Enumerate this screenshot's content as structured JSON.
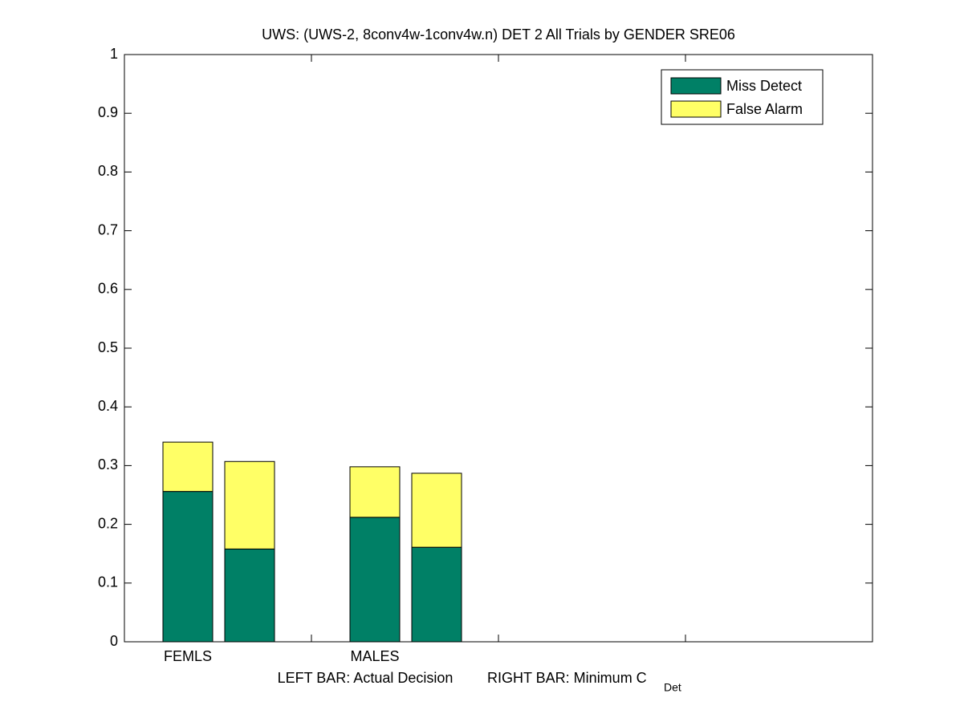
{
  "chart_data": {
    "type": "stacked-bar",
    "title": "UWS: (UWS-2, 8conv4w-1conv4w.n) DET 2 All Trials by GENDER SRE06",
    "categories": [
      "FEMLS",
      null,
      "MALES",
      null
    ],
    "series": [
      {
        "name": "Miss Detect",
        "color": "#008066",
        "values": [
          0.256,
          0.158,
          0.212,
          0.161
        ]
      },
      {
        "name": "False Alarm",
        "color": "#ffff66",
        "values": [
          0.084,
          0.149,
          0.086,
          0.126
        ]
      }
    ],
    "xlabel": {
      "left": "LEFT BAR: Actual Decision",
      "right": "RIGHT BAR: Minimum C",
      "subscript": "Det"
    },
    "ylim": [
      0,
      1
    ],
    "yticks": [
      0,
      0.1,
      0.2,
      0.3,
      0.4,
      0.5,
      0.6,
      0.7,
      0.8,
      0.9,
      1
    ],
    "legend": "upper-right"
  }
}
